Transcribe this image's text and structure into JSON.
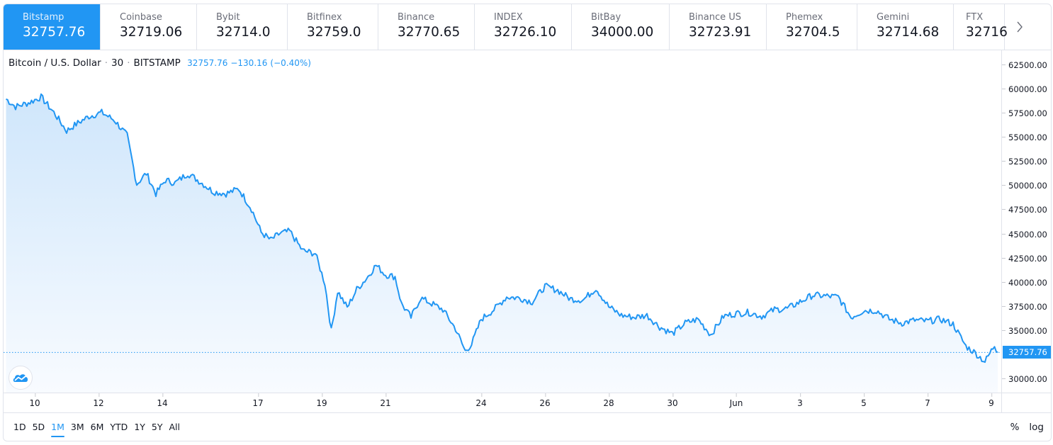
{
  "ticker_tabs": [
    {
      "exchange": "Bitstamp",
      "price": "32757.76",
      "active": true
    },
    {
      "exchange": "Coinbase",
      "price": "32719.06"
    },
    {
      "exchange": "Bybit",
      "price": "32714.0"
    },
    {
      "exchange": "Bitfinex",
      "price": "32759.0"
    },
    {
      "exchange": "Binance",
      "price": "32770.65"
    },
    {
      "exchange": "INDEX",
      "price": "32726.10"
    },
    {
      "exchange": "BitBay",
      "price": "34000.00"
    },
    {
      "exchange": "Binance US",
      "price": "32723.91"
    },
    {
      "exchange": "Phemex",
      "price": "32704.5"
    },
    {
      "exchange": "Gemini",
      "price": "32714.68"
    },
    {
      "exchange": "FTX",
      "price": "32716"
    }
  ],
  "legend": {
    "symbol": "Bitcoin / U.S. Dollar",
    "interval": "30",
    "exchange": "BITSTAMP",
    "separator": "·",
    "last": "32757.76",
    "change": "−130.16",
    "change_pct": "(−0.40%)"
  },
  "last_price_badge": "32757.76",
  "range_buttons": [
    "1D",
    "5D",
    "1M",
    "3M",
    "6M",
    "YTD",
    "1Y",
    "5Y",
    "All"
  ],
  "active_range": "1M",
  "scale_controls": {
    "percent": "%",
    "log": "log"
  },
  "icons": {
    "next": "chevron-right-icon",
    "logo": "tradingview-cloud-icon"
  },
  "colors": {
    "accent": "#2196f3",
    "line": "#2196f3",
    "area_top": "#cfe6fb",
    "area_bottom": "#f5faff",
    "border": "#e0e3eb"
  },
  "chart_data": {
    "type": "area",
    "title": "Bitcoin / U.S. Dollar · 30 · BITSTAMP",
    "xlabel": "",
    "ylabel": "",
    "ylim": [
      29500,
      63500
    ],
    "grid": false,
    "legend_position": "top-left",
    "y_ticks": [
      "62500.00",
      "60000.00",
      "57500.00",
      "55000.00",
      "52500.00",
      "50000.00",
      "47500.00",
      "45000.00",
      "42500.00",
      "40000.00",
      "37500.00",
      "35000.00",
      "30000.00"
    ],
    "x_ticks": [
      {
        "label": "10",
        "day": 10
      },
      {
        "label": "12",
        "day": 12
      },
      {
        "label": "14",
        "day": 14
      },
      {
        "label": "17",
        "day": 17
      },
      {
        "label": "19",
        "day": 19
      },
      {
        "label": "21",
        "day": 21
      },
      {
        "label": "24",
        "day": 24
      },
      {
        "label": "26",
        "day": 26
      },
      {
        "label": "28",
        "day": 28
      },
      {
        "label": "30",
        "day": 30
      },
      {
        "label": "Jun",
        "day": 32
      },
      {
        "label": "3",
        "day": 34
      },
      {
        "label": "5",
        "day": 36
      },
      {
        "label": "7",
        "day": 38
      },
      {
        "label": "9",
        "day": 40
      }
    ],
    "series": [
      {
        "name": "BTCUSD Bitstamp 30m",
        "x_day": [
          9.1,
          9.4,
          9.8,
          10.2,
          10.6,
          11.0,
          11.3,
          11.7,
          12.1,
          12.5,
          12.9,
          13.2,
          13.5,
          13.8,
          14.1,
          14.4,
          14.8,
          15.2,
          15.6,
          16.0,
          16.4,
          16.8,
          17.1,
          17.4,
          17.7,
          18.0,
          18.4,
          18.8,
          19.1,
          19.3,
          19.5,
          19.8,
          20.1,
          20.4,
          20.7,
          21.0,
          21.3,
          21.5,
          21.8,
          22.1,
          22.4,
          22.8,
          23.2,
          23.5,
          23.7,
          24.0,
          24.4,
          24.8,
          25.2,
          25.6,
          26.0,
          26.4,
          26.8,
          27.2,
          27.6,
          28.0,
          28.4,
          28.8,
          29.2,
          29.6,
          30.0,
          30.4,
          30.8,
          31.2,
          31.6,
          32.0,
          32.4,
          32.8,
          33.2,
          33.6,
          34.0,
          34.4,
          34.8,
          35.2,
          35.6,
          36.0,
          36.4,
          36.8,
          37.2,
          37.6,
          38.0,
          38.4,
          38.8,
          39.2,
          39.5,
          39.8,
          40.1,
          40.2
        ],
        "values": [
          59000,
          58200,
          58600,
          59200,
          57600,
          55700,
          56400,
          57200,
          57600,
          56800,
          55200,
          50200,
          51300,
          49200,
          50600,
          50300,
          51300,
          50400,
          49400,
          49200,
          49700,
          47600,
          45200,
          44400,
          45100,
          45300,
          43300,
          43000,
          39900,
          35000,
          39100,
          37400,
          39300,
          40400,
          41800,
          40800,
          40600,
          37800,
          36400,
          38400,
          37900,
          37200,
          35200,
          32900,
          33600,
          36200,
          37200,
          38500,
          38400,
          38000,
          39600,
          39200,
          38300,
          38200,
          39400,
          37500,
          36600,
          36400,
          36600,
          35400,
          34700,
          35800,
          36200,
          34600,
          36500,
          36800,
          36900,
          36500,
          37200,
          37300,
          38000,
          38700,
          38600,
          38500,
          36400,
          37100,
          37100,
          36200,
          35800,
          36100,
          36000,
          36200,
          35700,
          33400,
          32700,
          31800,
          33500,
          32757.76
        ]
      }
    ]
  }
}
